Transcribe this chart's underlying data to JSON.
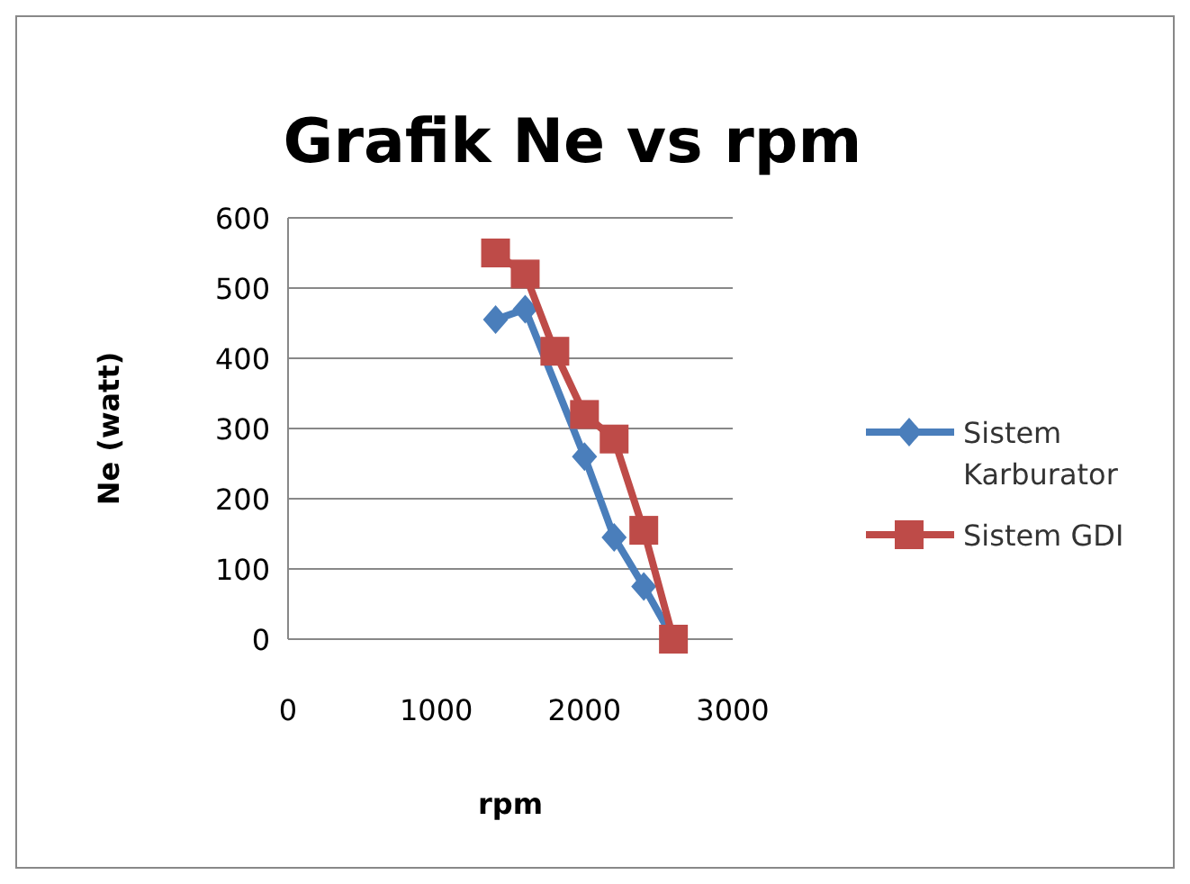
{
  "chart_data": {
    "type": "line",
    "title": "Grafik Ne vs rpm",
    "xlabel": "rpm",
    "ylabel": "Ne (watt)",
    "xlim": [
      0,
      3000
    ],
    "xticks": [
      0,
      1000,
      2000,
      3000
    ],
    "ylim": [
      0,
      600
    ],
    "yticks": [
      0,
      100,
      200,
      300,
      400,
      500,
      600
    ],
    "grid": "y",
    "legend": "right",
    "series": [
      {
        "name": "Sistem Karburator",
        "color": "#4a7ebb",
        "marker": "diamond",
        "x": [
          1400,
          1600,
          1800,
          2000,
          2200,
          2400,
          2600
        ],
        "values": [
          455,
          470,
          null,
          260,
          145,
          75,
          0
        ]
      },
      {
        "name": "Sistem GDI",
        "color": "#be4b48",
        "marker": "square",
        "x": [
          1400,
          1600,
          1800,
          2000,
          2200,
          2400,
          2600
        ],
        "values": [
          550,
          520,
          410,
          320,
          285,
          155,
          0
        ]
      }
    ]
  }
}
